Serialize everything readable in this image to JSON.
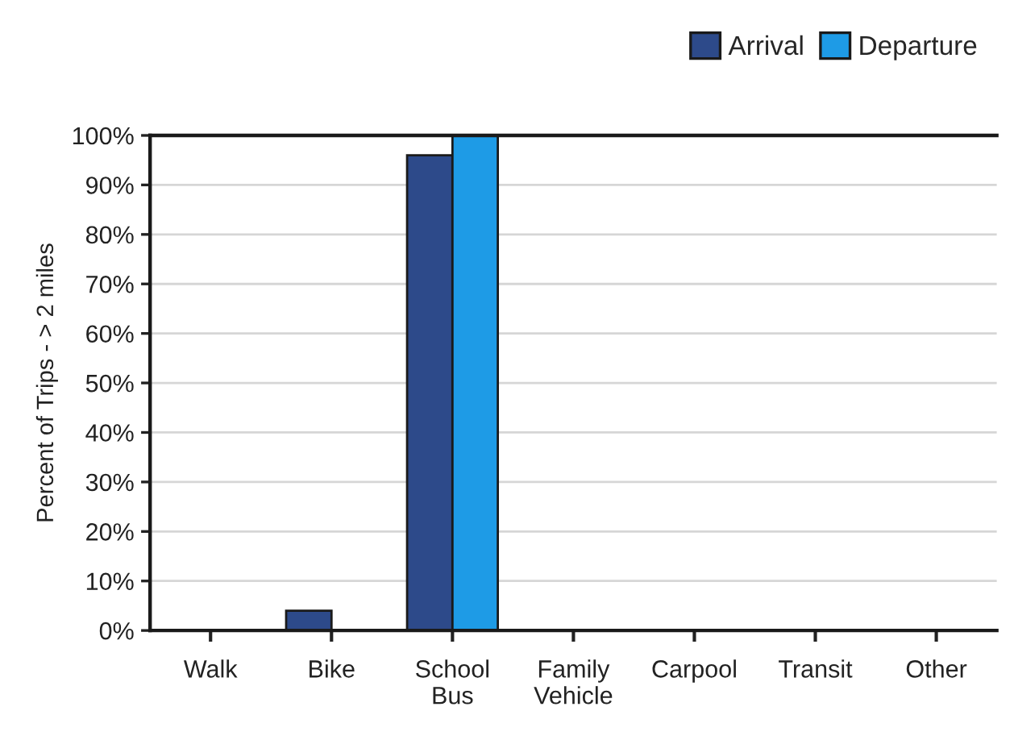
{
  "chart_data": {
    "type": "bar",
    "ylabel": "Percent of Trips - > 2 miles",
    "categories": [
      "Walk",
      "Bike",
      "School Bus",
      "Family Vehicle",
      "Carpool",
      "Transit",
      "Other"
    ],
    "series": [
      {
        "name": "Arrival",
        "color": "#2d4a8a",
        "values": [
          0,
          4,
          96,
          0,
          0,
          0,
          0
        ]
      },
      {
        "name": "Departure",
        "color": "#1e9be6",
        "values": [
          0,
          0,
          100,
          0,
          0,
          0,
          0
        ]
      }
    ],
    "ylim": [
      0,
      100
    ],
    "yticks": [
      {
        "value": 0,
        "label": "0%"
      },
      {
        "value": 10,
        "label": "10%"
      },
      {
        "value": 20,
        "label": "20%"
      },
      {
        "value": 30,
        "label": "30%"
      },
      {
        "value": 40,
        "label": "40%"
      },
      {
        "value": 50,
        "label": "50%"
      },
      {
        "value": 60,
        "label": "60%"
      },
      {
        "value": 70,
        "label": "70%"
      },
      {
        "value": 80,
        "label": "80%"
      },
      {
        "value": 90,
        "label": "90%"
      },
      {
        "value": 100,
        "label": "100%"
      }
    ],
    "grid": "y",
    "legend": "top right"
  }
}
